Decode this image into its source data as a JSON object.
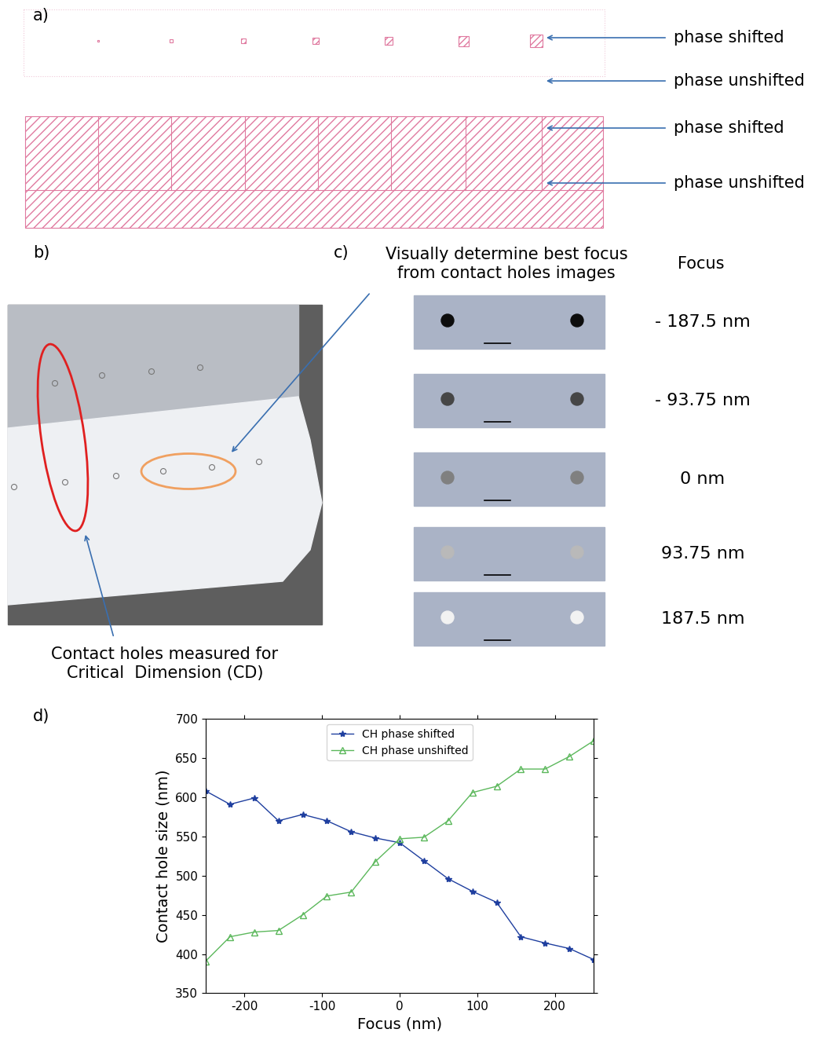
{
  "panels": {
    "a": {
      "label": "a)",
      "annotations": [
        "phase shifted",
        "phase unshifted",
        "phase shifted",
        "phase unshifted"
      ]
    },
    "b": {
      "label": "b)",
      "caption": "Contact holes measured for\nCritical  Dimension (CD)"
    },
    "c": {
      "label": "c)",
      "caption": "Visually determine best focus\nfrom contact holes images",
      "column_title": "Focus",
      "rows": [
        {
          "value": -187.5,
          "label": "- 187.5 nm"
        },
        {
          "value": -93.75,
          "label": "- 93.75 nm"
        },
        {
          "value": 0,
          "label": "0 nm"
        },
        {
          "value": 93.75,
          "label": "93.75 nm"
        },
        {
          "value": 187.5,
          "label": "187.5 nm"
        }
      ]
    },
    "d": {
      "label": "d)"
    }
  },
  "chart_data": {
    "type": "line",
    "x_label": "Focus (nm)",
    "y_label": "Contact hole size (nm)",
    "x": [
      -250,
      -218.75,
      -187.5,
      -156.25,
      -125,
      -93.75,
      -62.5,
      -31.25,
      0,
      31.25,
      62.5,
      93.75,
      125,
      156.25,
      187.5,
      218.75,
      250
    ],
    "series": [
      {
        "name": "CH phase shifted",
        "color": "#1f3f9f",
        "marker": "star",
        "line_style": "solid",
        "values": [
          608,
          591,
          599,
          570,
          578,
          570,
          556,
          548,
          542,
          519,
          496,
          480,
          466,
          422,
          414,
          407,
          393
        ]
      },
      {
        "name": "CH phase unshifted",
        "color": "#5cb85c",
        "marker": "triangle",
        "line_style": "solid",
        "values": [
          391,
          422,
          428,
          430,
          450,
          474,
          479,
          518,
          547,
          549,
          570,
          606,
          614,
          636,
          636,
          652,
          672
        ]
      }
    ],
    "xlim": [
      -250,
      250
    ],
    "xticks": [
      -200,
      -100,
      0,
      100,
      200
    ],
    "ylim": [
      350,
      700
    ],
    "yticks": [
      350,
      400,
      450,
      500,
      550,
      600,
      650,
      700
    ],
    "legend": "upper center",
    "grid": false
  }
}
